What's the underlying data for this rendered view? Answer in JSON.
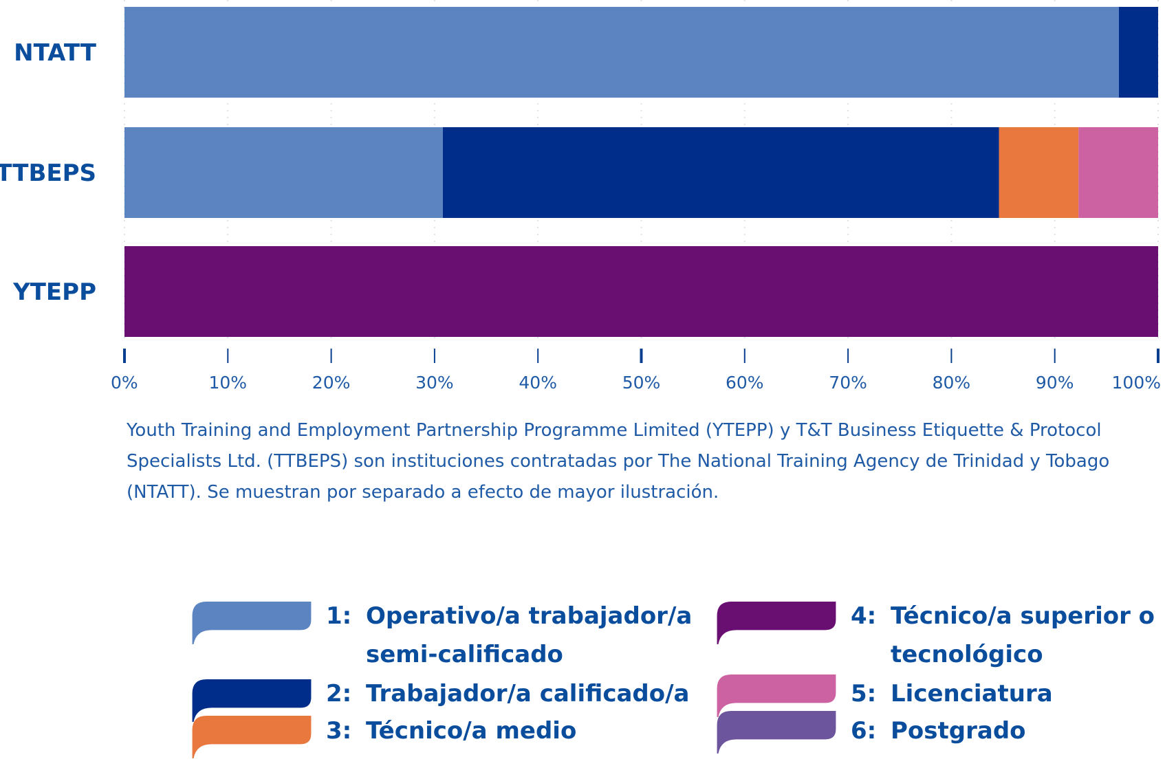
{
  "chart_data": {
    "type": "bar",
    "orientation": "horizontal",
    "stacked": true,
    "normalized": true,
    "categories": [
      "NTATT",
      "TTBEPS",
      "YTEPP"
    ],
    "series": [
      {
        "name": "Operativo/a trabajador/a semi-calificado",
        "legend_number": "1:",
        "color": "#5b84c0",
        "values": [
          96.2,
          30.8,
          0
        ]
      },
      {
        "name": "Trabajador/a calificado/a",
        "legend_number": "2:",
        "color": "#002d8a",
        "values": [
          3.8,
          53.8,
          0
        ]
      },
      {
        "name": "Técnico/a medio",
        "legend_number": "3:",
        "color": "#e8783d",
        "values": [
          0,
          7.7,
          0
        ]
      },
      {
        "name": "Técnico/a superior o tecnológico",
        "legend_number": "4:",
        "color": "#6a0f72",
        "values": [
          0,
          0,
          100
        ]
      },
      {
        "name": "Licenciatura",
        "legend_number": "5:",
        "color": "#cc62a2",
        "values": [
          0,
          7.7,
          0
        ]
      },
      {
        "name": "Postgrado",
        "legend_number": "6:",
        "color": "#6d559d",
        "values": [
          0,
          0,
          0
        ]
      }
    ],
    "xlim": [
      0,
      100
    ],
    "ticks": [
      "0%",
      "10%",
      "20%",
      "30%",
      "40%",
      "50%",
      "60%",
      "70%",
      "80%",
      "90%",
      "100%"
    ],
    "grid": true,
    "legend_position": "bottom"
  },
  "legend": [
    {
      "number": "1:",
      "line1": "Operativo/a trabajador/a",
      "line2": "semi-calificado"
    },
    {
      "number": "2:",
      "line1": "Trabajador/a calificado/a",
      "line2": ""
    },
    {
      "number": "3:",
      "line1": "Técnico/a medio",
      "line2": ""
    },
    {
      "number": "4:",
      "line1": "Técnico/a superior o",
      "line2": "tecnológico"
    },
    {
      "number": "5:",
      "line1": "Licenciatura",
      "line2": ""
    },
    {
      "number": "6:",
      "line1": "Postgrado",
      "line2": ""
    }
  ],
  "note": {
    "line1": "Youth Training and Employment Partnership Programme Limited (YTEPP) y T&T Business Etiquette & Protocol",
    "line2": "Specialists Ltd. (TTBEPS) son instituciones contratadas por The National Training Agency de Trinidad y Tobago",
    "line3": "(NTATT). Se muestran por separado a efecto de mayor ilustración."
  }
}
